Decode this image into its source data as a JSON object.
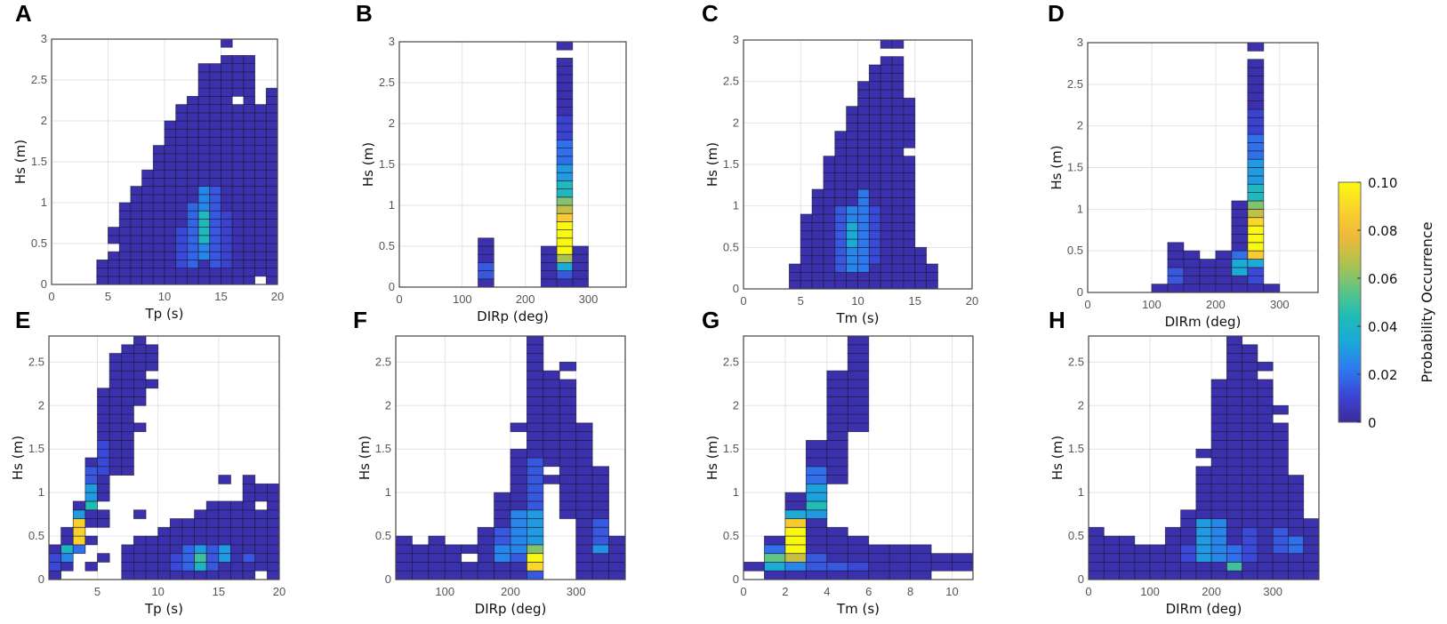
{
  "chart_data": [
    {
      "type": "heatmap",
      "panel": "A",
      "xlabel": "Tp (s)",
      "ylabel": "Hs (m)",
      "xlim": [
        0,
        20
      ],
      "ylim": [
        0,
        3
      ],
      "bin_x": 1,
      "bin_y": 0.1,
      "xticks": [
        0,
        5,
        10,
        15,
        20
      ],
      "yticks": [
        0,
        0.5,
        1,
        1.5,
        2,
        2.5,
        3
      ],
      "grid": true,
      "cells": [
        [
          4,
          0,
          0.3
        ],
        [
          5,
          0,
          0.4
        ],
        [
          5,
          0.5,
          0.7
        ],
        [
          6,
          0,
          1.0
        ],
        [
          7,
          0,
          1.2
        ],
        [
          8,
          0,
          1.4
        ],
        [
          9,
          0,
          1.7
        ],
        [
          10,
          0,
          2.0
        ],
        [
          11,
          0,
          2.2
        ],
        [
          12,
          0,
          2.3
        ],
        [
          13,
          0,
          2.7
        ],
        [
          14,
          0,
          2.7
        ],
        [
          15,
          0,
          2.8
        ],
        [
          15,
          2.9,
          3.0
        ],
        [
          16,
          0,
          2.2
        ],
        [
          16,
          2.3,
          2.8
        ],
        [
          17,
          0,
          2.8
        ],
        [
          18,
          0.1,
          2.2
        ],
        [
          19,
          0,
          2.4
        ]
      ],
      "values": [
        [
          13,
          0.3,
          1.2,
          0.025
        ],
        [
          13,
          0.5,
          0.9,
          0.042
        ],
        [
          12,
          0.2,
          1.0,
          0.018
        ],
        [
          14,
          0.2,
          1.2,
          0.015
        ],
        [
          11,
          0.2,
          0.7,
          0.012
        ],
        [
          15,
          0.2,
          0.9,
          0.01
        ]
      ]
    },
    {
      "type": "heatmap",
      "panel": "B",
      "xlabel": "DIRp (deg)",
      "ylabel": "Hs (m)",
      "xlim": [
        0,
        360
      ],
      "ylim": [
        0,
        3
      ],
      "bin_x": 25,
      "bin_y": 0.1,
      "xticks": [
        0,
        100,
        200,
        300
      ],
      "yticks": [
        0,
        0.5,
        1,
        1.5,
        2,
        2.5,
        3
      ],
      "grid": true,
      "cells": [
        [
          125,
          0,
          0.6
        ],
        [
          225,
          0,
          0.5
        ],
        [
          250,
          0,
          2.8
        ],
        [
          250,
          2.9,
          3.0
        ],
        [
          275,
          0,
          0.5
        ]
      ],
      "values": [
        [
          125,
          0.1,
          0.3,
          0.015
        ],
        [
          250,
          0.1,
          0.2,
          0.015
        ],
        [
          250,
          0.2,
          0.3,
          0.035
        ],
        [
          250,
          0.3,
          0.4,
          0.065
        ],
        [
          250,
          0.4,
          0.8,
          0.1
        ],
        [
          250,
          0.8,
          0.9,
          0.085
        ],
        [
          250,
          0.9,
          1.0,
          0.07
        ],
        [
          250,
          1.0,
          1.1,
          0.06
        ],
        [
          250,
          1.1,
          1.3,
          0.042
        ],
        [
          250,
          1.3,
          1.5,
          0.03
        ],
        [
          250,
          1.5,
          1.8,
          0.02
        ],
        [
          250,
          1.8,
          2.1,
          0.01
        ]
      ]
    },
    {
      "type": "heatmap",
      "panel": "C",
      "xlabel": "Tm (s)",
      "ylabel": "Hs (m)",
      "xlim": [
        0,
        20
      ],
      "ylim": [
        0,
        3
      ],
      "bin_x": 1,
      "bin_y": 0.1,
      "xticks": [
        0,
        5,
        10,
        15,
        20
      ],
      "yticks": [
        0,
        0.5,
        1,
        1.5,
        2,
        2.5,
        3
      ],
      "grid": true,
      "cells": [
        [
          4,
          0,
          0.3
        ],
        [
          5,
          0,
          0.9
        ],
        [
          6,
          0,
          1.2
        ],
        [
          7,
          0,
          1.6
        ],
        [
          8,
          0,
          1.9
        ],
        [
          9,
          0,
          2.2
        ],
        [
          10,
          0,
          2.5
        ],
        [
          11,
          0,
          2.7
        ],
        [
          12,
          0,
          2.8
        ],
        [
          12,
          2.9,
          3.0
        ],
        [
          13,
          0,
          2.8
        ],
        [
          13,
          2.9,
          3.0
        ],
        [
          14,
          0,
          1.6
        ],
        [
          14,
          1.7,
          2.3
        ],
        [
          15,
          0,
          0.5
        ],
        [
          16,
          0,
          0.3
        ]
      ],
      "values": [
        [
          9,
          0.2,
          1.0,
          0.025
        ],
        [
          9,
          0.5,
          0.8,
          0.035
        ],
        [
          10,
          0.2,
          1.2,
          0.022
        ],
        [
          8,
          0.2,
          1.0,
          0.015
        ],
        [
          11,
          0.3,
          1.0,
          0.012
        ]
      ]
    },
    {
      "type": "heatmap",
      "panel": "D",
      "xlabel": "DIRm (deg)",
      "ylabel": "Hs (m)",
      "xlim": [
        0,
        360
      ],
      "ylim": [
        0,
        3
      ],
      "bin_x": 25,
      "bin_y": 0.1,
      "xticks": [
        0,
        100,
        200,
        300
      ],
      "yticks": [
        0,
        0.5,
        1,
        1.5,
        2,
        2.5,
        3
      ],
      "grid": true,
      "cells": [
        [
          100,
          0,
          0.1
        ],
        [
          125,
          0,
          0.6
        ],
        [
          150,
          0,
          0.5
        ],
        [
          175,
          0,
          0.4
        ],
        [
          200,
          0,
          0.5
        ],
        [
          225,
          0,
          1.1
        ],
        [
          250,
          0,
          2.8
        ],
        [
          250,
          2.9,
          3.0
        ],
        [
          275,
          0,
          0.1
        ]
      ],
      "values": [
        [
          125,
          0.1,
          0.3,
          0.015
        ],
        [
          225,
          0.2,
          0.4,
          0.035
        ],
        [
          225,
          0.4,
          0.5,
          0.02
        ],
        [
          250,
          0.1,
          0.3,
          0.012
        ],
        [
          250,
          0.3,
          0.4,
          0.035
        ],
        [
          250,
          0.4,
          0.5,
          0.085
        ],
        [
          250,
          0.5,
          0.8,
          0.1
        ],
        [
          250,
          0.8,
          0.9,
          0.09
        ],
        [
          250,
          0.9,
          1.0,
          0.07
        ],
        [
          250,
          1.0,
          1.1,
          0.06
        ],
        [
          250,
          1.1,
          1.3,
          0.042
        ],
        [
          250,
          1.3,
          1.6,
          0.03
        ],
        [
          250,
          1.6,
          1.9,
          0.02
        ],
        [
          250,
          1.9,
          2.2,
          0.01
        ]
      ]
    },
    {
      "type": "heatmap",
      "panel": "E",
      "xlabel": "Tp (s)",
      "ylabel": "Hs (m)",
      "xlim": [
        1,
        20
      ],
      "ylim": [
        0,
        2.8
      ],
      "bin_x": 1,
      "bin_y": 0.1,
      "xticks": [
        5,
        10,
        15,
        20
      ],
      "yticks": [
        0,
        0.5,
        1,
        1.5,
        2,
        2.5
      ],
      "grid": true,
      "cells": [
        [
          1,
          0,
          0.4
        ],
        [
          2,
          0.1,
          0.6
        ],
        [
          3,
          0.3,
          0.9
        ],
        [
          4,
          0.1,
          0.2
        ],
        [
          4,
          0.4,
          0.5
        ],
        [
          4,
          0.6,
          1.4
        ],
        [
          5,
          0.2,
          0.3
        ],
        [
          5,
          0.6,
          0.8
        ],
        [
          5,
          0.9,
          2.2
        ],
        [
          6,
          1.2,
          2.6
        ],
        [
          7,
          0,
          0.4
        ],
        [
          7,
          1.2,
          2.7
        ],
        [
          8,
          0,
          0.5
        ],
        [
          8,
          0.7,
          0.8
        ],
        [
          8,
          1.7,
          1.8
        ],
        [
          8,
          2.0,
          2.8
        ],
        [
          9,
          0,
          0.5
        ],
        [
          9,
          2.2,
          2.3
        ],
        [
          9,
          2.4,
          2.7
        ],
        [
          10,
          0,
          0.6
        ],
        [
          11,
          0,
          0.7
        ],
        [
          12,
          0,
          0.7
        ],
        [
          13,
          0,
          0.8
        ],
        [
          14,
          0,
          0.9
        ],
        [
          15,
          0,
          0.9
        ],
        [
          15,
          1.1,
          1.2
        ],
        [
          16,
          0,
          0.9
        ],
        [
          17,
          0,
          1.2
        ],
        [
          18,
          0.1,
          0.8
        ],
        [
          18,
          0.9,
          1.1
        ],
        [
          19,
          0,
          1.1
        ]
      ],
      "values": [
        [
          1,
          0.1,
          0.3,
          0.012
        ],
        [
          2,
          0.2,
          0.3,
          0.025
        ],
        [
          2,
          0.3,
          0.4,
          0.04
        ],
        [
          3,
          0.3,
          0.4,
          0.02
        ],
        [
          3,
          0.4,
          0.7,
          0.088
        ],
        [
          3,
          0.7,
          0.8,
          0.03
        ],
        [
          4,
          0.8,
          0.9,
          0.045
        ],
        [
          4,
          0.9,
          1.1,
          0.03
        ],
        [
          4,
          1.1,
          1.3,
          0.015
        ],
        [
          5,
          1.2,
          1.6,
          0.012
        ],
        [
          12,
          0.1,
          0.4,
          0.018
        ],
        [
          13,
          0.1,
          0.2,
          0.04
        ],
        [
          13,
          0.2,
          0.3,
          0.05
        ],
        [
          13,
          0.3,
          0.4,
          0.03
        ],
        [
          15,
          0.2,
          0.4,
          0.03
        ],
        [
          14,
          0.1,
          0.4,
          0.015
        ],
        [
          11,
          0.1,
          0.3,
          0.012
        ],
        [
          17,
          0.2,
          0.3,
          0.015
        ]
      ]
    },
    {
      "type": "heatmap",
      "panel": "F",
      "xlabel": "DIRp (deg)",
      "ylabel": "Hs (m)",
      "xlim": [
        25,
        375
      ],
      "ylim": [
        0,
        2.8
      ],
      "bin_x": 25,
      "bin_y": 0.1,
      "xticks": [
        100,
        200,
        300
      ],
      "yticks": [
        0,
        0.5,
        1,
        1.5,
        2,
        2.5
      ],
      "grid": true,
      "cells": [
        [
          25,
          0,
          0.5
        ],
        [
          50,
          0,
          0.4
        ],
        [
          75,
          0,
          0.5
        ],
        [
          100,
          0,
          0.4
        ],
        [
          125,
          0,
          0.2
        ],
        [
          125,
          0.3,
          0.4
        ],
        [
          150,
          0,
          0.6
        ],
        [
          175,
          0,
          1.0
        ],
        [
          200,
          0,
          1.5
        ],
        [
          200,
          1.7,
          1.8
        ],
        [
          225,
          0,
          2.8
        ],
        [
          250,
          1.1,
          1.2
        ],
        [
          250,
          1.3,
          2.4
        ],
        [
          275,
          0.7,
          2.3
        ],
        [
          275,
          2.4,
          2.5
        ],
        [
          300,
          0,
          1.8
        ],
        [
          325,
          0,
          1.3
        ],
        [
          350,
          0,
          0.5
        ]
      ],
      "values": [
        [
          225,
          0,
          0.1,
          0.015
        ],
        [
          225,
          0.1,
          0.2,
          0.09
        ],
        [
          225,
          0.2,
          0.3,
          0.1
        ],
        [
          225,
          0.3,
          0.4,
          0.06
        ],
        [
          225,
          0.4,
          0.8,
          0.03
        ],
        [
          225,
          0.8,
          1.4,
          0.015
        ],
        [
          200,
          0.3,
          0.8,
          0.025
        ],
        [
          200,
          0.2,
          0.3,
          0.015
        ],
        [
          175,
          0.2,
          0.4,
          0.025
        ],
        [
          175,
          0.4,
          0.6,
          0.015
        ],
        [
          325,
          0.3,
          0.4,
          0.028
        ],
        [
          325,
          0.4,
          0.7,
          0.015
        ]
      ]
    },
    {
      "type": "heatmap",
      "panel": "G",
      "xlabel": "Tm (s)",
      "ylabel": "Hs (m)",
      "xlim": [
        0,
        11
      ],
      "ylim": [
        0,
        2.8
      ],
      "bin_x": 1,
      "bin_y": 0.1,
      "xticks": [
        0,
        2,
        4,
        6,
        8,
        10
      ],
      "yticks": [
        0,
        0.5,
        1,
        1.5,
        2,
        2.5
      ],
      "grid": true,
      "cells": [
        [
          0,
          0.1,
          0.2
        ],
        [
          1,
          0,
          0.5
        ],
        [
          2,
          0,
          1.0
        ],
        [
          3,
          0,
          1.6
        ],
        [
          4,
          0,
          0.6
        ],
        [
          4,
          1.1,
          2.4
        ],
        [
          5,
          0,
          0.5
        ],
        [
          5,
          1.7,
          2.8
        ],
        [
          6,
          0,
          0.4
        ],
        [
          7,
          0,
          0.4
        ],
        [
          8,
          0,
          0.4
        ],
        [
          9,
          0.1,
          0.3
        ],
        [
          10,
          0.1,
          0.3
        ]
      ],
      "values": [
        [
          1,
          0.1,
          0.2,
          0.035
        ],
        [
          1,
          0.2,
          0.3,
          0.055
        ],
        [
          1,
          0.3,
          0.4,
          0.02
        ],
        [
          2,
          0.1,
          0.2,
          0.025
        ],
        [
          2,
          0.2,
          0.3,
          0.07
        ],
        [
          2,
          0.3,
          0.6,
          0.1
        ],
        [
          2,
          0.6,
          0.7,
          0.085
        ],
        [
          2,
          0.7,
          0.8,
          0.035
        ],
        [
          3,
          0.1,
          0.3,
          0.015
        ],
        [
          3,
          0.7,
          0.8,
          0.03
        ],
        [
          3,
          0.8,
          0.9,
          0.045
        ],
        [
          3,
          0.9,
          1.1,
          0.032
        ],
        [
          3,
          1.1,
          1.3,
          0.02
        ],
        [
          4,
          0.1,
          0.2,
          0.015
        ],
        [
          5,
          0.1,
          0.2,
          0.012
        ]
      ]
    },
    {
      "type": "heatmap",
      "panel": "H",
      "xlabel": "DIRm (deg)",
      "ylabel": "Hs (m)",
      "xlim": [
        0,
        375
      ],
      "ylim": [
        0,
        2.8
      ],
      "bin_x": 25,
      "bin_y": 0.1,
      "xticks": [
        0,
        100,
        200,
        300
      ],
      "yticks": [
        0,
        0.5,
        1,
        1.5,
        2,
        2.5
      ],
      "grid": true,
      "cells": [
        [
          0,
          0,
          0.6
        ],
        [
          25,
          0,
          0.5
        ],
        [
          50,
          0,
          0.5
        ],
        [
          75,
          0,
          0.4
        ],
        [
          100,
          0,
          0.4
        ],
        [
          125,
          0,
          0.6
        ],
        [
          150,
          0,
          0.8
        ],
        [
          175,
          0,
          1.3
        ],
        [
          175,
          1.4,
          1.5
        ],
        [
          200,
          0,
          2.3
        ],
        [
          225,
          0,
          2.8
        ],
        [
          250,
          0,
          2.7
        ],
        [
          275,
          0,
          2.3
        ],
        [
          275,
          2.4,
          2.5
        ],
        [
          300,
          0,
          1.8
        ],
        [
          300,
          1.9,
          2.0
        ],
        [
          325,
          0,
          1.2
        ],
        [
          350,
          0,
          0.7
        ]
      ],
      "values": [
        [
          225,
          0.1,
          0.2,
          0.05
        ],
        [
          175,
          0.2,
          0.7,
          0.03
        ],
        [
          200,
          0.2,
          0.7,
          0.025
        ],
        [
          225,
          0.2,
          0.4,
          0.02
        ],
        [
          250,
          0.2,
          0.6,
          0.012
        ],
        [
          300,
          0.3,
          0.6,
          0.015
        ],
        [
          325,
          0.3,
          0.5,
          0.02
        ],
        [
          150,
          0.2,
          0.4,
          0.012
        ]
      ]
    }
  ],
  "colorbar": {
    "title": "Probability Occurrence",
    "range": [
      0,
      0.1
    ],
    "ticks": [
      "0",
      "0.02",
      "0.04",
      "0.06",
      "0.08",
      "0.10"
    ],
    "default_cell_value": 0.003,
    "colormap": [
      "#3b2a9c",
      "#3c45d6",
      "#2d7bf0",
      "#1aa8da",
      "#1fbcb5",
      "#62c483",
      "#b3c24a",
      "#f0b83a",
      "#fbd32a",
      "#f9f90f"
    ]
  }
}
